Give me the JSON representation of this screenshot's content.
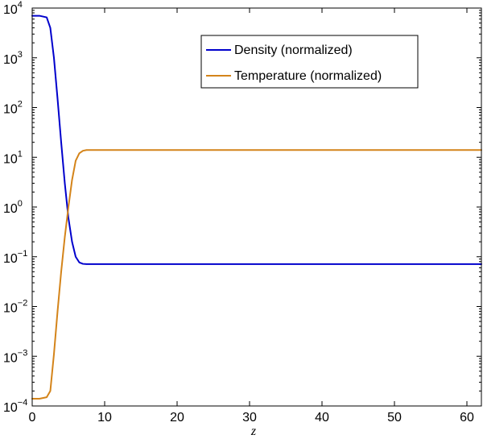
{
  "chart_data": {
    "type": "line",
    "title": "",
    "xlabel": "z",
    "ylabel": "",
    "xlim": [
      0,
      62
    ],
    "ylim": [
      0.0001,
      10000
    ],
    "yscale": "log",
    "grid": false,
    "legend_position": "top-right",
    "x_ticks": [
      0,
      10,
      20,
      30,
      40,
      50,
      60
    ],
    "x_tick_labels": [
      "0",
      "10",
      "20",
      "30",
      "40",
      "50",
      "60"
    ],
    "y_ticks": [
      {
        "value": 0.0001,
        "base": "10",
        "exp": "−4"
      },
      {
        "value": 0.001,
        "base": "10",
        "exp": "−3"
      },
      {
        "value": 0.01,
        "base": "10",
        "exp": "−2"
      },
      {
        "value": 0.1,
        "base": "10",
        "exp": "−1"
      },
      {
        "value": 1,
        "base": "10",
        "exp": "0"
      },
      {
        "value": 10,
        "base": "10",
        "exp": "1"
      },
      {
        "value": 100,
        "base": "10",
        "exp": "2"
      },
      {
        "value": 1000,
        "base": "10",
        "exp": "3"
      },
      {
        "value": 10000,
        "base": "10",
        "exp": "4"
      }
    ],
    "series": [
      {
        "name": "Density (normalized)",
        "color": "#0000cc",
        "x": [
          0,
          1,
          2,
          2.5,
          3,
          3.5,
          4,
          4.5,
          5,
          5.5,
          6,
          6.5,
          7,
          7.5,
          8,
          10,
          20,
          30,
          40,
          50,
          62
        ],
        "y": [
          7000,
          7000,
          6500,
          4000,
          1000,
          150,
          20,
          3,
          0.6,
          0.2,
          0.1,
          0.077,
          0.072,
          0.071,
          0.071,
          0.071,
          0.071,
          0.071,
          0.071,
          0.071,
          0.071
        ]
      },
      {
        "name": "Temperature (normalized)",
        "color": "#d4841a",
        "x": [
          0,
          1,
          2,
          2.5,
          3,
          3.5,
          4,
          4.5,
          5,
          5.5,
          6,
          6.5,
          7,
          7.5,
          8,
          10,
          20,
          30,
          40,
          50,
          62
        ],
        "y": [
          0.00014,
          0.00014,
          0.00015,
          0.0002,
          0.0011,
          0.008,
          0.05,
          0.25,
          1.0,
          3.5,
          8.5,
          12,
          13.5,
          14,
          14,
          14,
          14,
          14,
          14,
          14,
          14
        ]
      }
    ]
  }
}
